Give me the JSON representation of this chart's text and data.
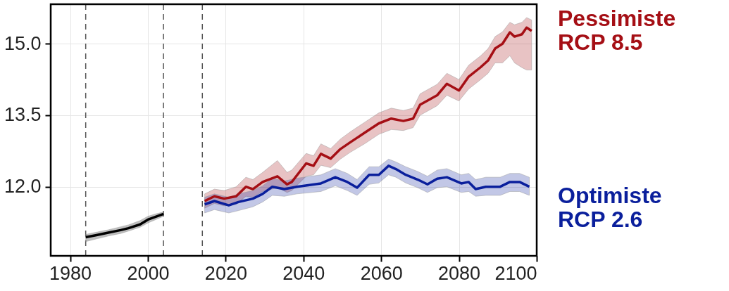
{
  "chart_data": {
    "type": "line",
    "xlim": [
      1975,
      2100
    ],
    "ylim": [
      10.55,
      15.83
    ],
    "xticks": [
      1980,
      2000,
      2020,
      2040,
      2060,
      2080,
      2100
    ],
    "yticks": [
      {
        "value": 12,
        "label": "12.0"
      },
      {
        "value": 13.5,
        "label": "13.5"
      },
      {
        "value": 15,
        "label": "15.0"
      }
    ],
    "grid": true,
    "legend": false,
    "marker": "none",
    "line_style": "solid",
    "ref_lines": [
      {
        "axis": "x",
        "value": 1984,
        "color": "#555555",
        "line_style": "dashed"
      },
      {
        "axis": "x",
        "value": 2004,
        "color": "#555555",
        "line_style": "dashed"
      },
      {
        "axis": "x",
        "value": 2014,
        "color": "#555555",
        "line_style": "dashed"
      }
    ],
    "series": [
      {
        "color": "#000000",
        "x": [
          1984,
          1987,
          1990,
          1993,
          1995,
          1998,
          2000,
          2002,
          2004
        ],
        "values": [
          10.94,
          10.99,
          11.04,
          11.09,
          11.13,
          11.21,
          11.31,
          11.37,
          11.43
        ],
        "lower": [
          10.85,
          10.91,
          10.97,
          11.02,
          11.07,
          11.15,
          11.24,
          11.31,
          11.38
        ],
        "upper": [
          11.0,
          11.05,
          11.1,
          11.16,
          11.2,
          11.29,
          11.38,
          11.43,
          11.47
        ]
      },
      {
        "name": "Pessimiste\nRCP 8.5",
        "color": "#a50f15",
        "x": [
          2014.6,
          2017.1,
          2019.6,
          2022.7,
          2025.2,
          2027,
          2029.5,
          2033.3,
          2035.8,
          2037,
          2040.7,
          2042.6,
          2044.5,
          2047,
          2049.5,
          2052,
          2055.7,
          2059.4,
          2062.6,
          2065.7,
          2068.2,
          2070,
          2074.4,
          2076.9,
          2080,
          2082.5,
          2085.6,
          2087.5,
          2089.3,
          2091.2,
          2093.1,
          2094.3,
          2096.2,
          2097.4,
          2098.7
        ],
        "values": [
          11.7,
          11.8,
          11.75,
          11.8,
          12.0,
          11.95,
          12.1,
          12.22,
          12.05,
          12.1,
          12.49,
          12.44,
          12.69,
          12.59,
          12.79,
          12.93,
          13.13,
          13.33,
          13.43,
          13.38,
          13.43,
          13.72,
          13.92,
          14.16,
          14.02,
          14.31,
          14.51,
          14.65,
          14.9,
          15.0,
          15.24,
          15.15,
          15.2,
          15.34,
          15.27
        ],
        "lower": [
          11.55,
          11.65,
          11.6,
          11.63,
          11.8,
          11.78,
          11.9,
          11.98,
          11.88,
          11.92,
          12.22,
          12.25,
          12.45,
          12.4,
          12.58,
          12.72,
          12.9,
          13.1,
          13.2,
          13.18,
          13.24,
          13.5,
          13.7,
          13.92,
          13.8,
          14.05,
          14.25,
          14.38,
          14.6,
          14.6,
          14.75,
          14.6,
          14.5,
          14.45,
          14.45
        ],
        "upper": [
          11.85,
          11.95,
          11.92,
          12.0,
          12.2,
          12.15,
          12.3,
          12.55,
          12.3,
          12.35,
          12.7,
          12.65,
          12.9,
          12.8,
          13.0,
          13.15,
          13.35,
          13.55,
          13.65,
          13.6,
          13.65,
          13.95,
          14.15,
          14.38,
          14.25,
          14.55,
          14.75,
          14.9,
          15.15,
          15.25,
          15.45,
          15.4,
          15.45,
          15.55,
          15.5
        ]
      },
      {
        "name": "Optimiste\nRCP 2.6",
        "color": "#0a1f9c",
        "x": [
          2014.6,
          2017.1,
          2020.8,
          2023.3,
          2027,
          2029.5,
          2032,
          2035.1,
          2038.3,
          2044.5,
          2048.2,
          2051.3,
          2053.8,
          2056.9,
          2059.4,
          2061.9,
          2063.8,
          2066.3,
          2069.4,
          2071.9,
          2074.4,
          2076.9,
          2080.6,
          2082.5,
          2084.3,
          2086.9,
          2090.6,
          2093.1,
          2095.6,
          2098.1
        ],
        "values": [
          11.63,
          11.7,
          11.61,
          11.68,
          11.75,
          11.85,
          12.0,
          11.95,
          12.0,
          12.07,
          12.2,
          12.1,
          11.98,
          12.25,
          12.25,
          12.44,
          12.37,
          12.25,
          12.15,
          12.05,
          12.17,
          12.2,
          12.07,
          12.1,
          11.95,
          12.0,
          12.0,
          12.1,
          12.1,
          12.0
        ],
        "lower": [
          11.45,
          11.52,
          11.45,
          11.5,
          11.58,
          11.68,
          11.82,
          11.8,
          11.85,
          11.9,
          12.02,
          11.92,
          11.82,
          12.05,
          12.08,
          12.25,
          12.2,
          12.08,
          11.98,
          11.88,
          11.98,
          12.0,
          11.88,
          11.9,
          11.8,
          11.82,
          11.82,
          11.9,
          11.9,
          11.82
        ],
        "upper": [
          11.78,
          11.85,
          11.78,
          11.85,
          11.92,
          12.02,
          12.18,
          12.12,
          12.18,
          12.25,
          12.38,
          12.28,
          12.15,
          12.42,
          12.42,
          12.58,
          12.52,
          12.42,
          12.32,
          12.22,
          12.35,
          12.38,
          12.25,
          12.28,
          12.15,
          12.2,
          12.2,
          12.28,
          12.28,
          12.2
        ]
      }
    ]
  }
}
